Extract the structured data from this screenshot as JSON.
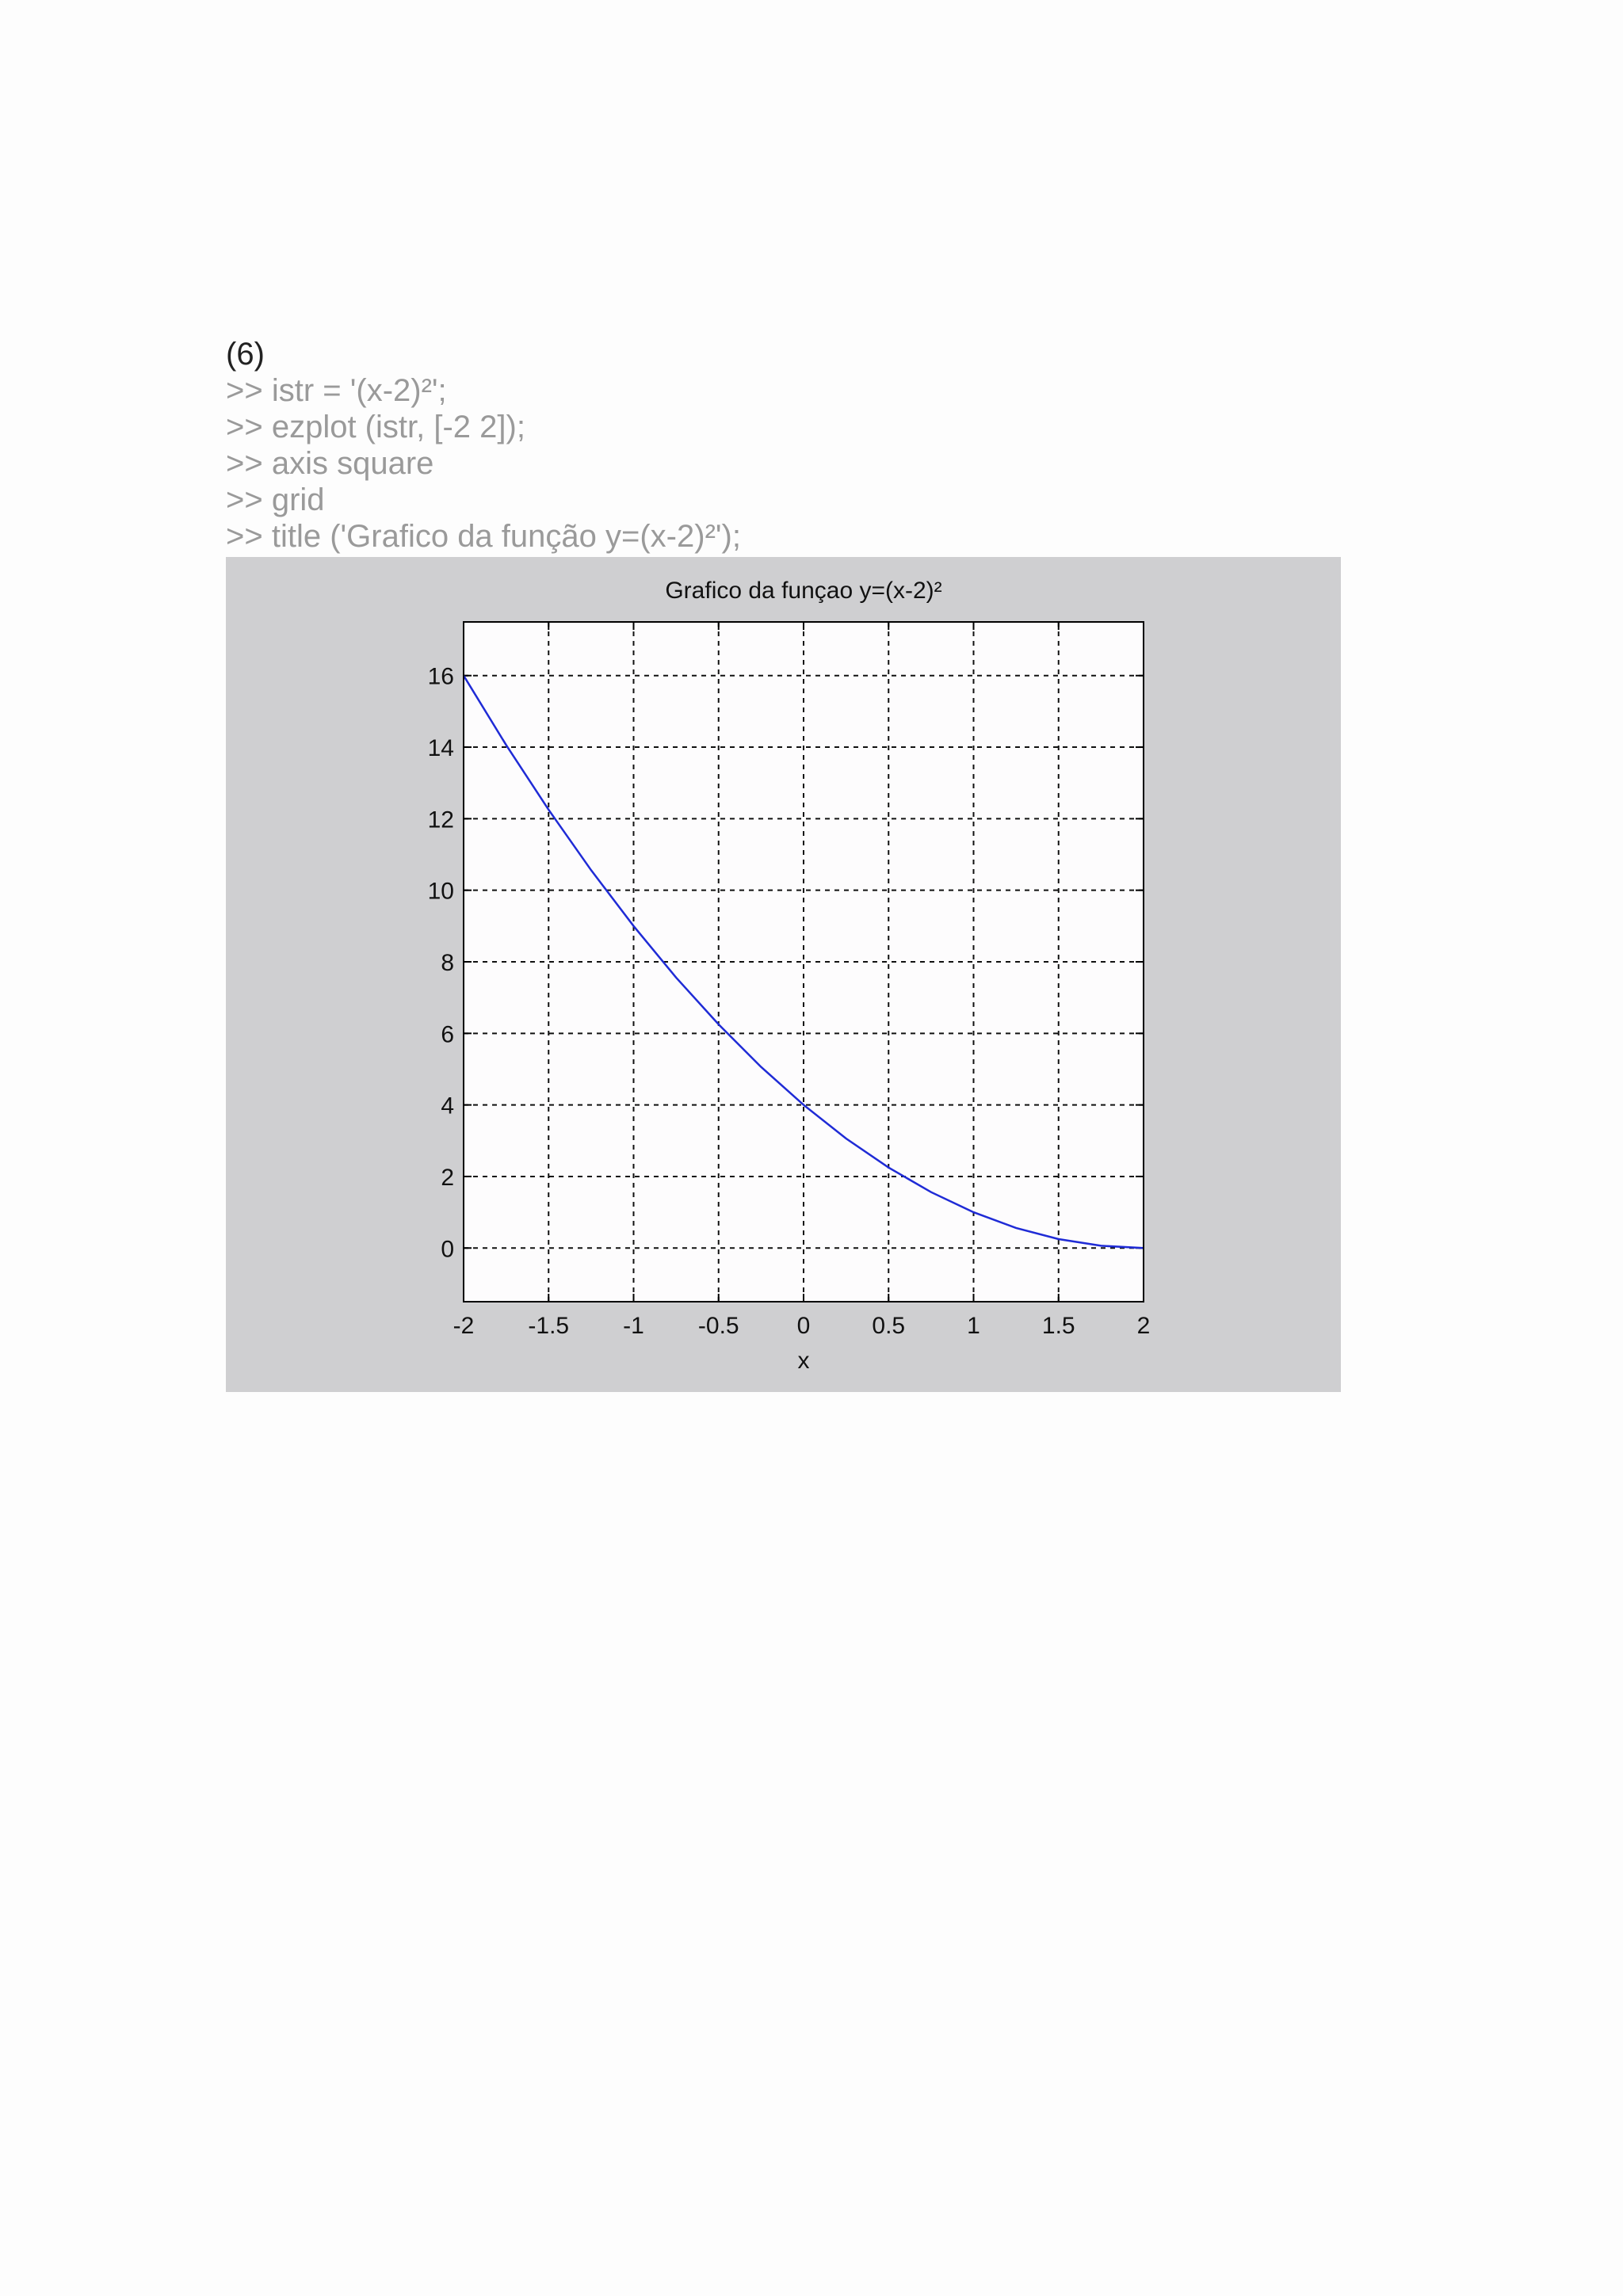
{
  "section_label": "(6)",
  "code_lines": [
    ">> istr = '(x-2)²';",
    ">> ezplot (istr, [-2 2]);",
    ">> axis square",
    ">> grid",
    ">> title ('Grafico da função y=(x-2)²');"
  ],
  "chart_data": {
    "type": "line",
    "title": "Grafico da funçao y=(x-2)²",
    "xlabel": "x",
    "ylabel": "",
    "xlim": [
      -2,
      2
    ],
    "ylim": [
      -1.5,
      17.5
    ],
    "xticks": [
      -2,
      -1.5,
      -1,
      -0.5,
      0,
      0.5,
      1,
      1.5,
      2
    ],
    "xtick_labels": [
      "-2",
      "-1.5",
      "-1",
      "-0.5",
      "0",
      "0.5",
      "1",
      "1.5",
      "2"
    ],
    "yticks": [
      0,
      2,
      4,
      6,
      8,
      10,
      12,
      14,
      16
    ],
    "ytick_labels": [
      "0",
      "2",
      "4",
      "6",
      "8",
      "10",
      "12",
      "14",
      "16"
    ],
    "grid": true,
    "series": [
      {
        "color": "#1f2bd6",
        "x": [
          -2,
          -1.75,
          -1.5,
          -1.25,
          -1,
          -0.75,
          -0.5,
          -0.25,
          0,
          0.25,
          0.5,
          0.75,
          1,
          1.25,
          1.5,
          1.75,
          2
        ],
        "y": [
          16,
          14.0625,
          12.25,
          10.5625,
          9,
          7.5625,
          6.25,
          5.0625,
          4,
          3.0625,
          2.25,
          1.5625,
          1,
          0.5625,
          0.25,
          0.0625,
          0
        ]
      }
    ],
    "colors": {
      "figure_background": "#cfcfd1",
      "axes_background": "#fdfcfd",
      "grid": "#111111"
    }
  }
}
